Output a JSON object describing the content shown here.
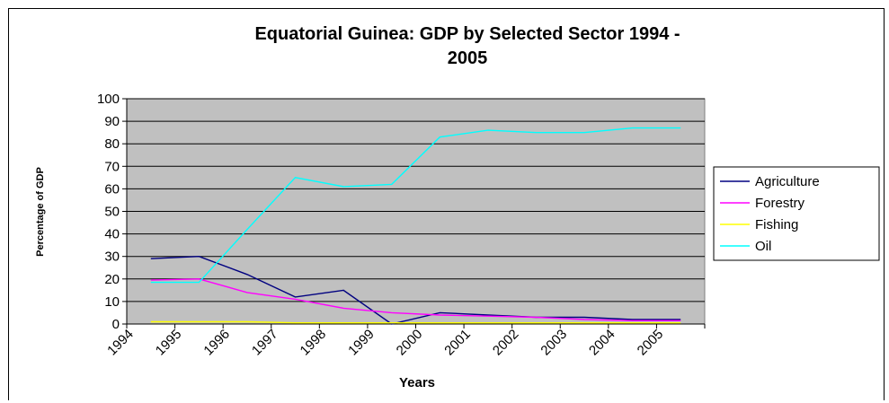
{
  "chart_data": {
    "type": "line",
    "title_line1": "Equatorial Guinea: GDP by Selected Sector 1994 -",
    "title_line2": "2005",
    "xlabel": "Years",
    "ylabel": "Percentage of GDP",
    "x_tick_labels": [
      "1994",
      "1995",
      "1996",
      "1997",
      "1998",
      "1999",
      "2000",
      "2001",
      "2002",
      "2003",
      "2004",
      "2005"
    ],
    "categories": [
      "1994",
      "1995",
      "1996",
      "1997",
      "1998",
      "1999",
      "2000",
      "2001",
      "2002",
      "2003",
      "2004",
      "2005"
    ],
    "ylim": [
      0,
      100
    ],
    "y_ticks": [
      0,
      10,
      20,
      30,
      40,
      50,
      60,
      70,
      80,
      90,
      100
    ],
    "grid": true,
    "plot_background": "#c0c0c0",
    "legend_position": "right",
    "series": [
      {
        "name": "Agriculture",
        "color": "#000080",
        "values": [
          29,
          30,
          22,
          12,
          15,
          0,
          5,
          4,
          3,
          3,
          2,
          2
        ]
      },
      {
        "name": "Forestry",
        "color": "#ff00ff",
        "values": [
          19.5,
          20,
          14,
          11,
          7,
          5,
          4,
          3.5,
          3,
          2,
          1.5,
          1.5
        ]
      },
      {
        "name": "Fishing",
        "color": "#ffff00",
        "values": [
          1,
          1,
          1,
          0.5,
          0.5,
          0.5,
          0.5,
          0.5,
          0.5,
          0.5,
          0.5,
          0.5
        ]
      },
      {
        "name": "Oil",
        "color": "#00ffff",
        "values": [
          18.5,
          18.5,
          42,
          65,
          61,
          62,
          83,
          86,
          85,
          85,
          87,
          87
        ]
      }
    ]
  }
}
